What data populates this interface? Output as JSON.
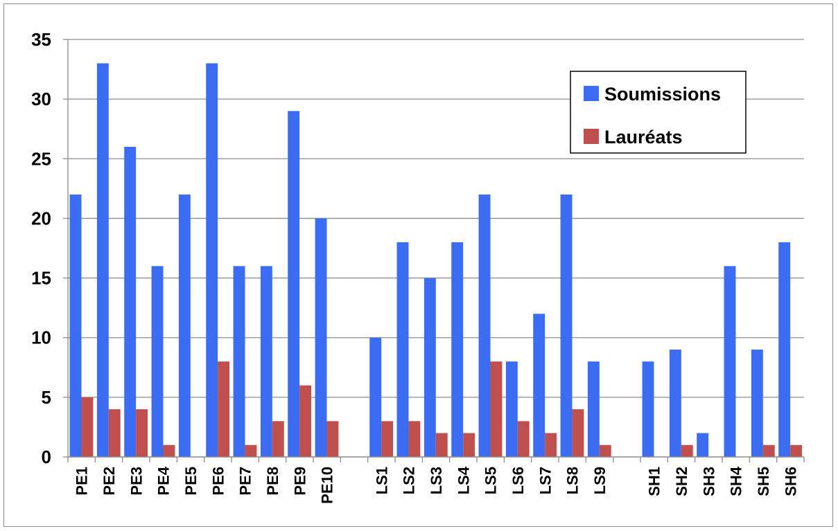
{
  "chart_data": {
    "type": "bar",
    "categories": [
      "PE1",
      "PE2",
      "PE3",
      "PE4",
      "PE5",
      "PE6",
      "PE7",
      "PE8",
      "PE9",
      "PE10",
      "",
      "LS1",
      "LS2",
      "LS3",
      "LS4",
      "LS5",
      "LS6",
      "LS7",
      "LS8",
      "LS9",
      "",
      "SH1",
      "SH2",
      "SH3",
      "SH4",
      "SH5",
      "SH6"
    ],
    "series": [
      {
        "name": "Soumissions",
        "color": "#3b6cf2",
        "values": [
          22,
          33,
          26,
          16,
          22,
          33,
          16,
          16,
          29,
          20,
          null,
          10,
          18,
          15,
          18,
          22,
          8,
          12,
          22,
          8,
          null,
          8,
          9,
          2,
          16,
          9,
          18
        ]
      },
      {
        "name": "Lauréats",
        "color": "#c0504d",
        "values": [
          5,
          4,
          4,
          1,
          0,
          8,
          1,
          3,
          6,
          3,
          null,
          3,
          3,
          2,
          2,
          8,
          3,
          2,
          4,
          1,
          null,
          0,
          1,
          0,
          0,
          1,
          1
        ]
      }
    ],
    "yticks": [
      0,
      5,
      10,
      15,
      20,
      25,
      30,
      35
    ],
    "ylim": [
      0,
      35
    ],
    "grid": true,
    "legend_position": "top-right"
  }
}
